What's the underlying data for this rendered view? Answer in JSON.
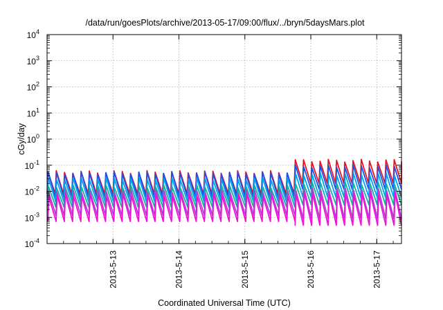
{
  "chart_data": {
    "type": "line",
    "title": "/data/run/goesPlots/archive/2013-05-17/09:00/flux/../bryn/5daysMars.plot",
    "xlabel": "Coordinated Universal Time (UTC)",
    "ylabel": "cGy/day",
    "y_scale": "log",
    "ylim": [
      0.0001,
      10000
    ],
    "y_ticks": [
      {
        "value": 0.0001,
        "base": "10",
        "exp": "-4"
      },
      {
        "value": 0.001,
        "base": "10",
        "exp": "-3"
      },
      {
        "value": 0.01,
        "base": "10",
        "exp": "-2"
      },
      {
        "value": 0.1,
        "base": "10",
        "exp": "-1"
      },
      {
        "value": 1,
        "base": "10",
        "exp": "0"
      },
      {
        "value": 10,
        "base": "10",
        "exp": "1"
      },
      {
        "value": 100,
        "base": "10",
        "exp": "2"
      },
      {
        "value": 1000,
        "base": "10",
        "exp": "3"
      },
      {
        "value": 10000,
        "base": "10",
        "exp": "4"
      }
    ],
    "xlim": [
      "2013-05-12T00:00",
      "2013-05-17T09:00"
    ],
    "x_ticks": [
      "2013-5-13",
      "2013-5-14",
      "2013-5-15",
      "2013-5-16",
      "2013-5-17"
    ],
    "x_tick_dates": [
      "2013-05-13",
      "2013-05-14",
      "2013-05-15",
      "2013-05-16",
      "2013-05-17"
    ],
    "grid": true,
    "legend": "none",
    "orbit_period_hours": 3,
    "series": [
      {
        "color": "#e8141c",
        "peak": 0.055,
        "trough": 0.008,
        "peak_after_storm": 0.15,
        "trough_after_storm": 0.02
      },
      {
        "color": "#1e50e6",
        "peak": 0.05,
        "trough": 0.006,
        "peak_after_storm": 0.09,
        "trough_after_storm": 0.012
      },
      {
        "color": "#00a0f0",
        "peak": 0.03,
        "trough": 0.004,
        "peak_after_storm": 0.045,
        "trough_after_storm": 0.006
      },
      {
        "color": "#14b0a0",
        "peak": 0.015,
        "trough": 0.0025,
        "peak_after_storm": 0.02,
        "trough_after_storm": 0.003
      },
      {
        "color": "#b040d0",
        "peak": 0.01,
        "trough": 0.0012,
        "peak_after_storm": 0.012,
        "trough_after_storm": 0.0009
      },
      {
        "color": "#f010d8",
        "peak": 0.007,
        "trough": 0.0007,
        "peak_after_storm": 0.008,
        "trough_after_storm": 0.0005
      }
    ],
    "storm_onset": "2013-05-15T17:00"
  }
}
